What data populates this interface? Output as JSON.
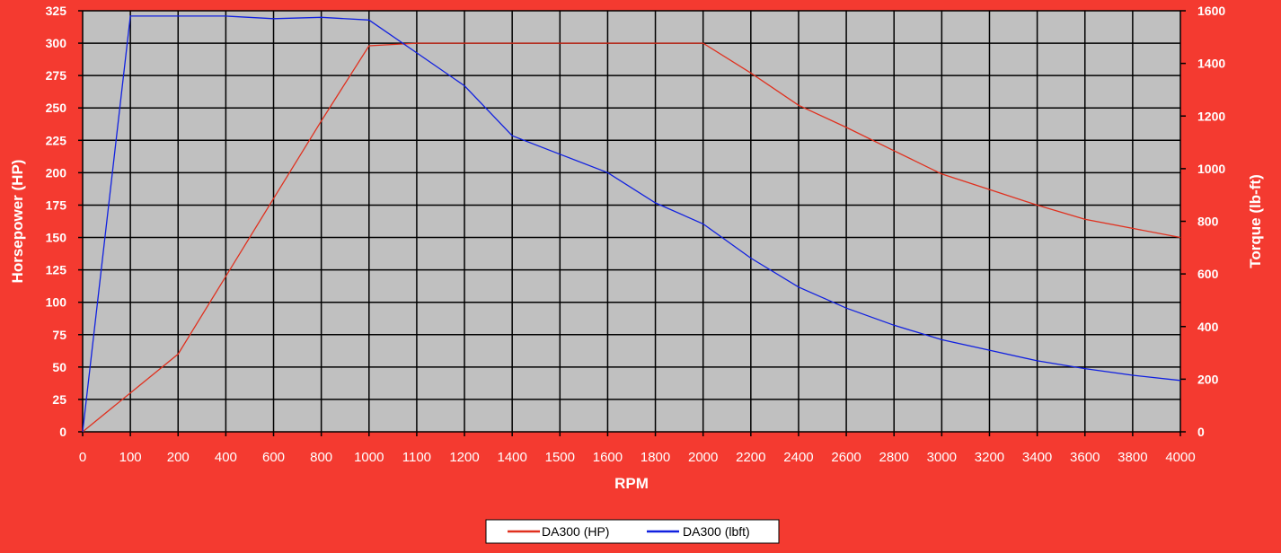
{
  "colors": {
    "background": "#f43a30",
    "plot_area": "#c0c0c0",
    "grid": "#000000",
    "hp_series": "#e0301e",
    "torque_series": "#1020e0",
    "text": "#ffffff",
    "legend_bg": "#ffffff",
    "legend_text": "#000000"
  },
  "chart_data": {
    "type": "line",
    "title": "",
    "xlabel": "RPM",
    "ylabel": "Horsepower (HP)",
    "y2label": "Torque (lb-ft)",
    "categories": [
      "0",
      "100",
      "200",
      "400",
      "600",
      "800",
      "1000",
      "1100",
      "1200",
      "1400",
      "1500",
      "1600",
      "1800",
      "2000",
      "2200",
      "2400",
      "2600",
      "2800",
      "3000",
      "3200",
      "3400",
      "3600",
      "3800",
      "4000"
    ],
    "ylim": [
      0,
      325
    ],
    "yticks": [
      0,
      25,
      50,
      75,
      100,
      125,
      150,
      175,
      200,
      225,
      250,
      275,
      300,
      325
    ],
    "y2lim": [
      0,
      1600
    ],
    "y2ticks": [
      0,
      200,
      400,
      600,
      800,
      1000,
      1200,
      1400,
      1600
    ],
    "grid": true,
    "legend_position": "bottom",
    "series": [
      {
        "name": "DA300 (HP)",
        "axis": "left",
        "values": [
          0,
          30,
          60,
          120,
          180,
          240,
          298,
          300,
          300,
          300,
          300,
          300,
          300,
          300,
          277,
          252,
          235,
          217,
          199,
          187,
          175,
          164,
          157,
          150
        ]
      },
      {
        "name": "DA300 (lbft)",
        "axis": "right",
        "values": [
          0,
          1580,
          1580,
          1580,
          1570,
          1575,
          1565,
          1440,
          1315,
          1125,
          1055,
          985,
          870,
          790,
          660,
          550,
          470,
          405,
          350,
          310,
          270,
          240,
          215,
          195
        ]
      }
    ]
  }
}
